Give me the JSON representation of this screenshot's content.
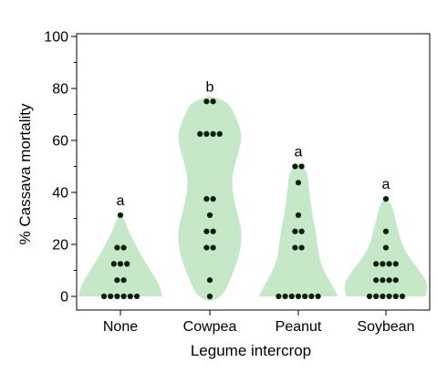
{
  "chart_data": {
    "type": "violin-dot",
    "xlabel": "Legume intercrop",
    "ylabel": "% Cassava mortality",
    "ylim": [
      0,
      100
    ],
    "yticks": [
      0,
      20,
      40,
      60,
      80,
      100
    ],
    "grid": false,
    "colors": {
      "violin": "#c7e8c8",
      "dot": "#0a1f0a",
      "axis": "#000000"
    },
    "categories": [
      "None",
      "Cowpea",
      "Peanut",
      "Soybean"
    ],
    "groups": [
      {
        "name": "None",
        "letter": "a",
        "values": [
          0,
          0,
          0,
          0,
          0,
          0,
          6.25,
          6.25,
          12.5,
          12.5,
          12.5,
          18.75,
          18.75,
          31.25
        ],
        "density": [
          [
            0,
            1.0
          ],
          [
            5,
            0.92
          ],
          [
            10,
            0.72
          ],
          [
            15,
            0.52
          ],
          [
            20,
            0.36
          ],
          [
            25,
            0.2
          ],
          [
            30,
            0.08
          ],
          [
            32,
            0.0
          ]
        ]
      },
      {
        "name": "Cowpea",
        "letter": "b",
        "values": [
          0,
          6.25,
          18.75,
          18.75,
          25,
          25,
          31.25,
          37.5,
          37.5,
          62.5,
          62.5,
          62.5,
          62.5,
          75,
          75
        ],
        "density": [
          [
            -2,
            0.0
          ],
          [
            0,
            0.3
          ],
          [
            5,
            0.45
          ],
          [
            15,
            0.7
          ],
          [
            25,
            0.78
          ],
          [
            35,
            0.6
          ],
          [
            45,
            0.5
          ],
          [
            55,
            0.68
          ],
          [
            62,
            0.78
          ],
          [
            70,
            0.6
          ],
          [
            75,
            0.42
          ],
          [
            77,
            0.0
          ]
        ]
      },
      {
        "name": "Peanut",
        "letter": "a",
        "values": [
          0,
          0,
          0,
          0,
          0,
          0,
          0,
          18.75,
          18.75,
          25,
          25,
          31.25,
          43.75,
          50,
          50
        ],
        "density": [
          [
            0,
            0.95
          ],
          [
            5,
            0.78
          ],
          [
            10,
            0.6
          ],
          [
            15,
            0.5
          ],
          [
            20,
            0.45
          ],
          [
            25,
            0.42
          ],
          [
            30,
            0.35
          ],
          [
            40,
            0.26
          ],
          [
            48,
            0.22
          ],
          [
            51,
            0.0
          ]
        ]
      },
      {
        "name": "Soybean",
        "letter": "a",
        "values": [
          0,
          0,
          0,
          0,
          0,
          0,
          6.25,
          6.25,
          6.25,
          6.25,
          12.5,
          12.5,
          12.5,
          12.5,
          18.75,
          25,
          37.5
        ],
        "density": [
          [
            0,
            0.95
          ],
          [
            5,
            1.0
          ],
          [
            10,
            0.8
          ],
          [
            15,
            0.55
          ],
          [
            20,
            0.38
          ],
          [
            25,
            0.3
          ],
          [
            30,
            0.22
          ],
          [
            35,
            0.15
          ],
          [
            38,
            0.0
          ]
        ]
      }
    ]
  }
}
